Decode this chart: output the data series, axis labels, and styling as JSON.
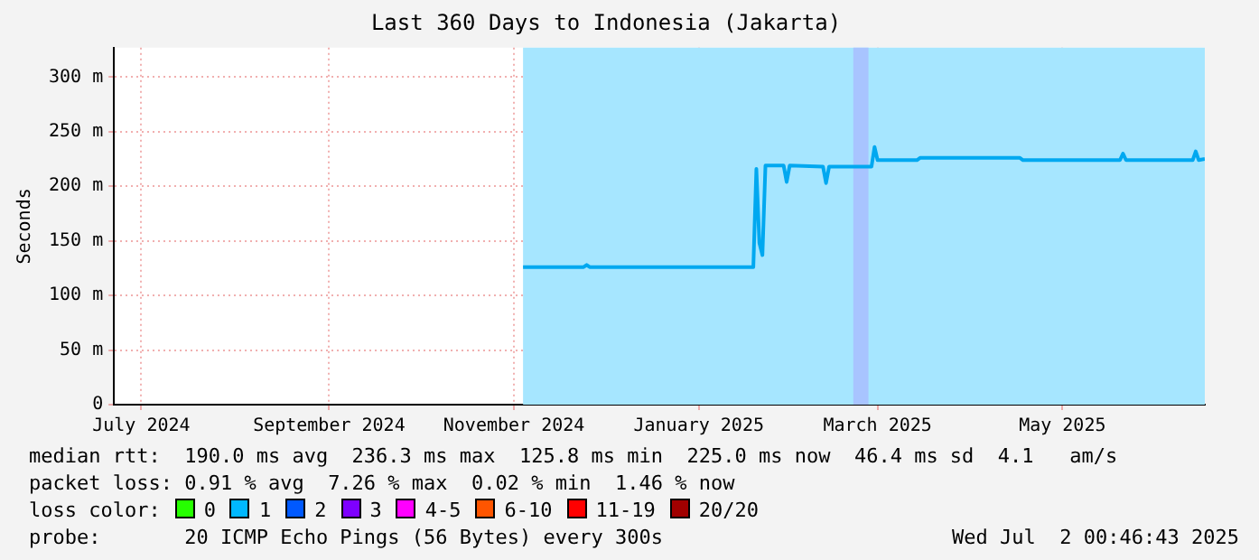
{
  "chart_data": {
    "type": "line",
    "title": "Last 360 Days to Indonesia (Jakarta)",
    "ylabel": "Seconds",
    "xlim": [
      "2024-07-07",
      "2025-07-02"
    ],
    "xticks": [
      {
        "value": "2024-07-16",
        "label": "July 2024"
      },
      {
        "value": "2024-09-16",
        "label": "September 2024"
      },
      {
        "value": "2024-11-16",
        "label": "November 2024"
      },
      {
        "value": "2025-01-16",
        "label": "January 2025"
      },
      {
        "value": "2025-03-16",
        "label": "March 2025"
      },
      {
        "value": "2025-05-16",
        "label": "May 2025"
      }
    ],
    "ylim": [
      0,
      327
    ],
    "yticks": [
      0,
      {
        "value": 50,
        "label": "50 m"
      },
      {
        "value": 100,
        "label": "100 m"
      },
      {
        "value": 150,
        "label": "150 m"
      },
      {
        "value": 200,
        "label": "200 m"
      },
      {
        "value": 250,
        "label": "250 m"
      },
      {
        "value": 300,
        "label": "300 m"
      }
    ],
    "grid": true,
    "legend": false,
    "marker": "none",
    "line_style": "solid",
    "bands": [
      {
        "axis": "x",
        "from": "2024-11-19",
        "to": "2025-07-02",
        "color": "#a6e6ff"
      },
      {
        "axis": "x",
        "from": "2025-03-08",
        "to": "2025-03-13",
        "color": "#a8c4ff"
      }
    ],
    "series": [
      {
        "color": "#00a8f0",
        "x": [
          "2024-11-19",
          "2024-12-09",
          "2024-12-10",
          "2024-12-11",
          "2025-02-03",
          "2025-02-04",
          "2025-02-05",
          "2025-02-06",
          "2025-02-07",
          "2025-02-13",
          "2025-02-14",
          "2025-02-15",
          "2025-02-26",
          "2025-02-27",
          "2025-02-28",
          "2025-03-14",
          "2025-03-15",
          "2025-03-16",
          "2025-03-29",
          "2025-03-30",
          "2025-05-02",
          "2025-05-03",
          "2025-06-04",
          "2025-06-05",
          "2025-06-06",
          "2025-06-28",
          "2025-06-29",
          "2025-06-30",
          "2025-07-02"
        ],
        "values": [
          126,
          126,
          128,
          126,
          126,
          216,
          148,
          137,
          219,
          219,
          204,
          219,
          218,
          203,
          218,
          218,
          236,
          224,
          224,
          226,
          226,
          224,
          224,
          230,
          224,
          224,
          232,
          224,
          225
        ]
      }
    ],
    "annotations": [
      "median rtt:  190.0 ms avg  236.3 ms max  125.8 ms min  225.0 ms now  46.4 ms sd  4.1   am/s",
      "packet loss: 0.91 % avg  7.26 % max  0.02 % min  1.46 % now",
      "loss color:",
      "0",
      "1",
      "2",
      "3",
      "4-5",
      "6-10",
      "11-19",
      "20/20",
      "probe:       20 ICMP Echo Pings (56 Bytes) every 300s",
      "Wed Jul  2 00:46:43 2025"
    ]
  }
}
